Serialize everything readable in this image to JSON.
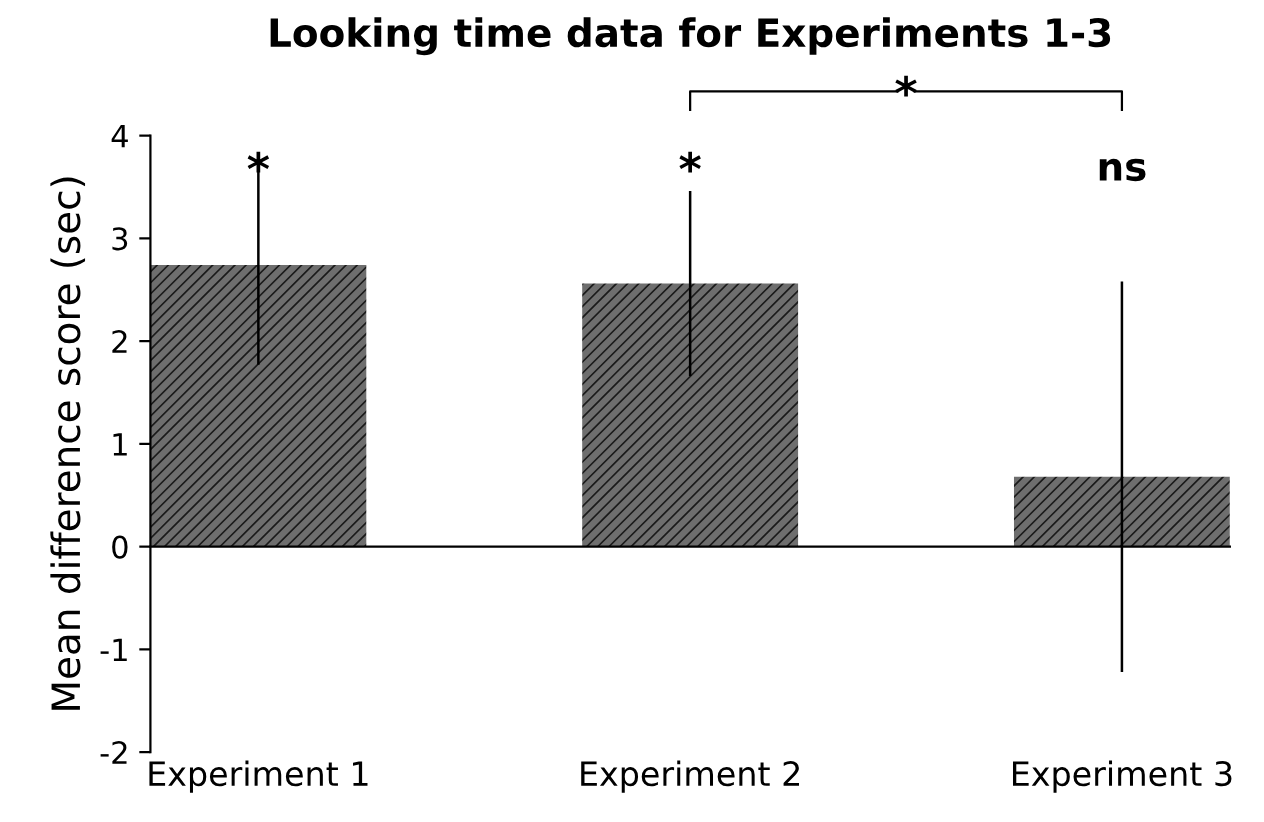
{
  "chart_data": {
    "type": "bar",
    "title": "Looking time data for Experiments 1-3",
    "ylabel": "Mean difference score (sec)",
    "categories": [
      "Experiment 1",
      "Experiment 2",
      "Experiment 3"
    ],
    "values": [
      2.74,
      2.56,
      0.68
    ],
    "errors": [
      0.97,
      0.9,
      1.9
    ],
    "color": "#6e6e6e",
    "ylim": [
      -2,
      4
    ],
    "yticks": [
      -2,
      -1,
      0,
      1,
      2,
      3,
      4
    ],
    "legend": false,
    "annotations": [
      "*",
      "*",
      "ns",
      "*"
    ]
  }
}
